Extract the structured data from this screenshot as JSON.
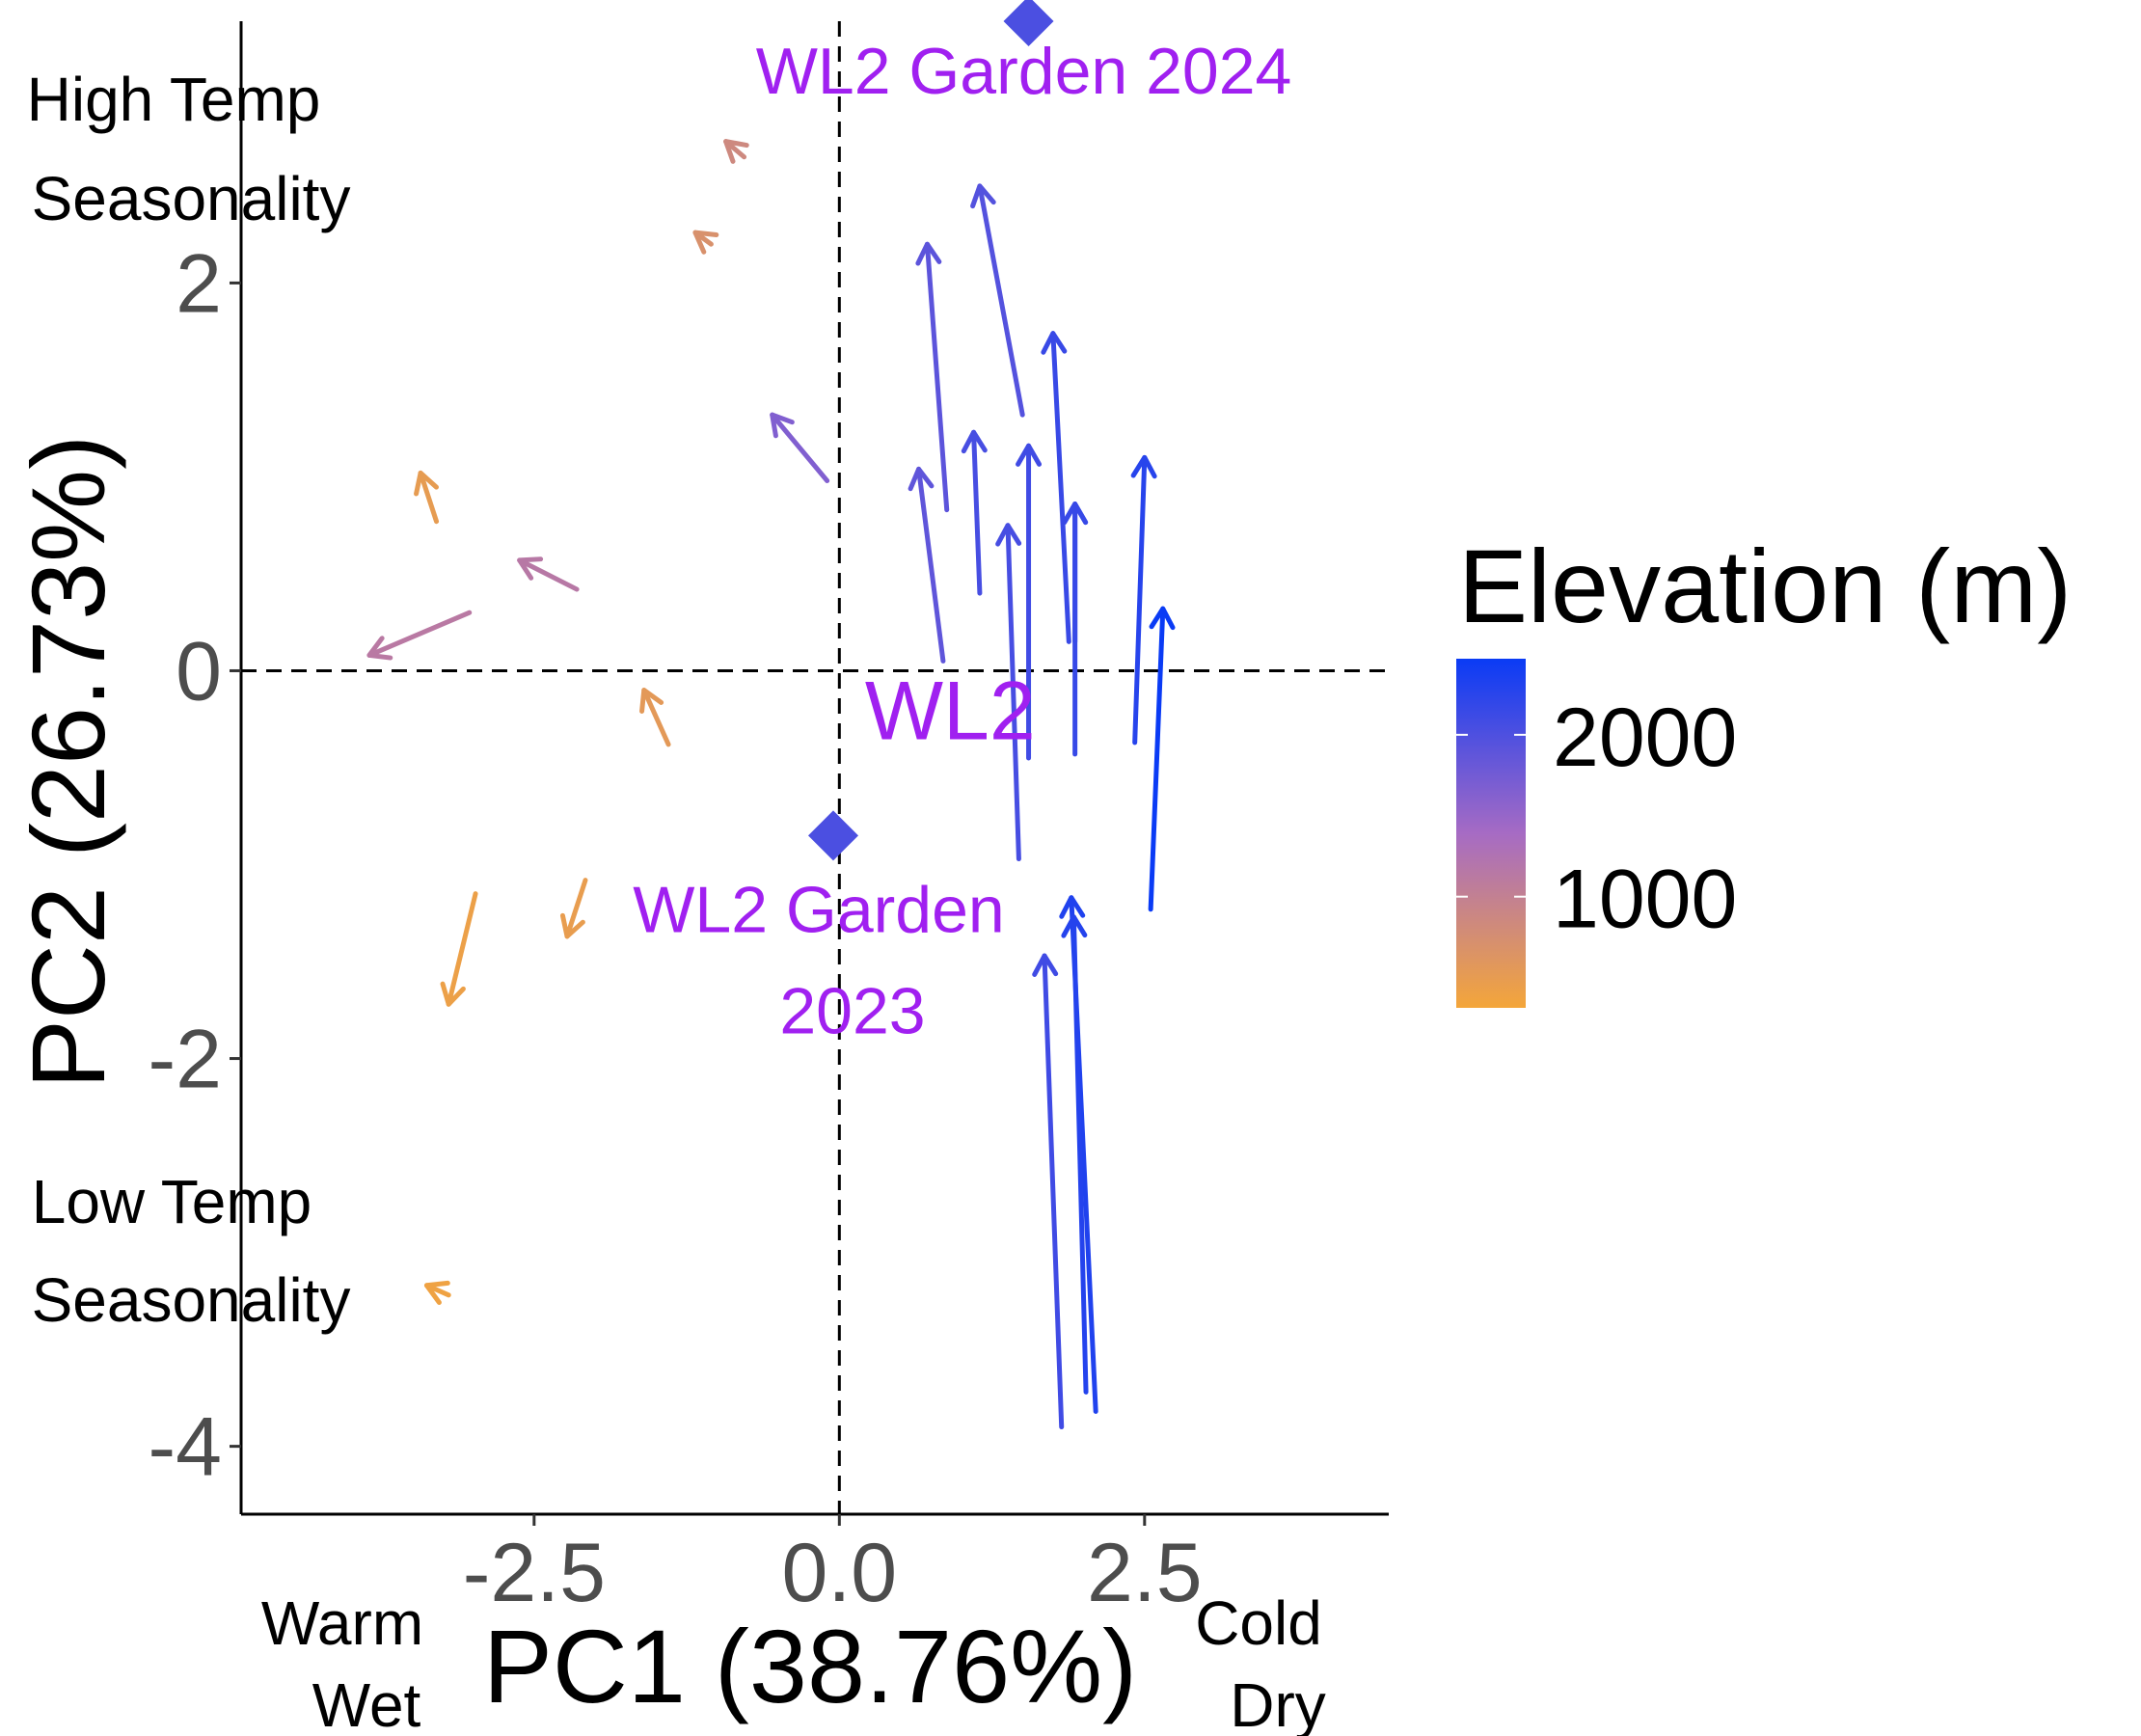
{
  "chart_data": {
    "type": "scatter",
    "subtype": "pca-arrows",
    "xlabel": "PC1 (38.76%)",
    "ylabel": "PC2 (26.73%)",
    "xlim": [
      -4.9,
      4.5
    ],
    "ylim": [
      -4.35,
      3.35
    ],
    "x_ticks": [
      -2.5,
      0.0,
      2.5
    ],
    "x_tick_labels": [
      "-2.5",
      "0.0",
      "2.5"
    ],
    "y_ticks": [
      -4,
      -2,
      0,
      2
    ],
    "y_tick_labels": [
      "-4",
      "-2",
      "0",
      "2"
    ],
    "grid": false,
    "reference_lines": {
      "x": 0,
      "y": 0,
      "style": "dashed"
    },
    "corner_labels": {
      "x_low_line1": "Warm",
      "x_low_line2": "Wet",
      "x_high_line1": "Cold",
      "x_high_line2": "Dry",
      "y_high_line1": "High Temp",
      "y_high_line2": "Seasonality",
      "y_low_line1": "Low Temp",
      "y_low_line2": "Seasonality"
    },
    "garden_points": [
      {
        "label_line1": "WL2 Garden 2024",
        "label_line2": "",
        "x": 1.55,
        "y": 3.35,
        "elevation": 2020
      },
      {
        "label_line1": "WL2 Garden",
        "label_line2": "2023",
        "x": -0.05,
        "y": -0.85,
        "elevation": 2020
      }
    ],
    "site_label": {
      "text": "WL2",
      "x": 0.75,
      "y": -0.18
    },
    "colorbar": {
      "title": "Elevation (m)",
      "ticks": [
        2000,
        1000
      ],
      "tick_labels": [
        "2000",
        "1000"
      ],
      "range": [
        313,
        2470
      ],
      "low_color": "#f4a63a",
      "mid_color": "#a66bc4",
      "high_color": "#0a3bf5"
    },
    "arrows": [
      {
        "x0": 2.55,
        "y0": -1.23,
        "x1": 2.65,
        "y1": 0.32,
        "elevation": 2470
      },
      {
        "x0": 2.42,
        "y0": -0.37,
        "x1": 2.5,
        "y1": 1.1,
        "elevation": 2270
      },
      {
        "x0": 1.93,
        "y0": 0.15,
        "x1": 1.93,
        "y1": 0.86,
        "elevation": 2160
      },
      {
        "x0": 1.93,
        "y0": -0.43,
        "x1": 1.93,
        "y1": 0.86,
        "elevation": 2160
      },
      {
        "x0": 1.88,
        "y0": 0.15,
        "x1": 1.75,
        "y1": 1.74,
        "elevation": 2150
      },
      {
        "x0": 1.55,
        "y0": -0.45,
        "x1": 1.55,
        "y1": 1.16,
        "elevation": 2100
      },
      {
        "x0": 1.5,
        "y0": 1.32,
        "x1": 1.15,
        "y1": 2.5,
        "elevation": 1960
      },
      {
        "x0": 1.47,
        "y0": -0.97,
        "x1": 1.38,
        "y1": 0.75,
        "elevation": 2050
      },
      {
        "x0": 1.15,
        "y0": 0.4,
        "x1": 1.1,
        "y1": 1.23,
        "elevation": 2050
      },
      {
        "x0": 0.88,
        "y0": 0.83,
        "x1": 0.72,
        "y1": 2.2,
        "elevation": 1900
      },
      {
        "x0": 0.85,
        "y0": 0.05,
        "x1": 0.65,
        "y1": 1.04,
        "elevation": 1880
      },
      {
        "x0": 2.1,
        "y0": -3.82,
        "x1": 1.9,
        "y1": -1.17,
        "elevation": 2320
      },
      {
        "x0": 2.02,
        "y0": -3.72,
        "x1": 1.92,
        "y1": -1.27,
        "elevation": 2290
      },
      {
        "x0": 1.82,
        "y0": -3.9,
        "x1": 1.68,
        "y1": -1.47,
        "elevation": 2100
      },
      {
        "x0": -0.1,
        "y0": 0.98,
        "x1": -0.55,
        "y1": 1.32,
        "elevation": 1650
      },
      {
        "x0": -3.03,
        "y0": 0.3,
        "x1": -3.85,
        "y1": 0.08,
        "elevation": 1130
      },
      {
        "x0": -2.15,
        "y0": 0.42,
        "x1": -2.62,
        "y1": 0.57,
        "elevation": 1150
      },
      {
        "x0": -3.3,
        "y0": 0.77,
        "x1": -3.43,
        "y1": 1.02,
        "elevation": 500
      },
      {
        "x0": -1.4,
        "y0": -0.38,
        "x1": -1.6,
        "y1": -0.1,
        "elevation": 550
      },
      {
        "x0": -2.08,
        "y0": -1.08,
        "x1": -2.23,
        "y1": -1.37,
        "elevation": 480
      },
      {
        "x0": -2.98,
        "y0": -1.15,
        "x1": -3.2,
        "y1": -1.72,
        "elevation": 420
      },
      {
        "x0": -1.05,
        "y0": 2.2,
        "x1": -1.18,
        "y1": 2.26,
        "elevation": 700
      },
      {
        "x0": -0.78,
        "y0": 2.65,
        "x1": -0.93,
        "y1": 2.73,
        "elevation": 850
      },
      {
        "x0": -3.2,
        "y0": -3.22,
        "x1": -3.38,
        "y1": -3.17,
        "elevation": 380
      }
    ]
  }
}
